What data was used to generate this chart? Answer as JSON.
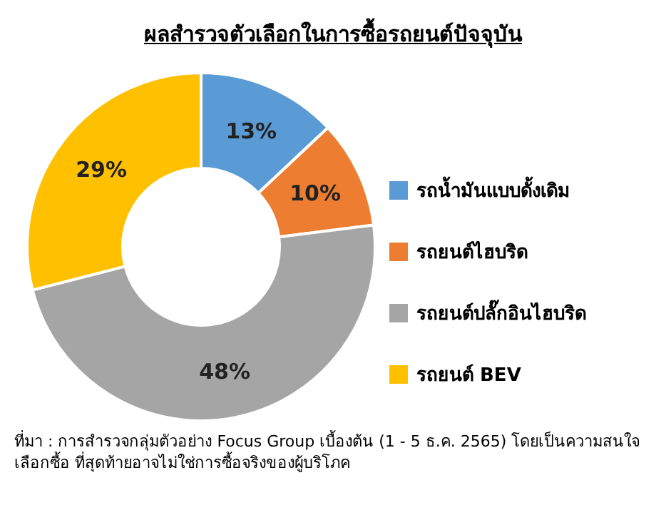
{
  "chart_data": {
    "type": "donut",
    "title": "ผลสำรวจตัวเลือกในการซื้อรถยนต์ปัจจุบัน",
    "categories": [
      "รถน้ำมันแบบดั้งเดิม",
      "รถยนต์ไฮบริด",
      "รถยนต์ปลั๊กอินไฮบริด",
      "รถยนต์ BEV"
    ],
    "values": [
      13,
      10,
      48,
      29
    ],
    "value_labels": [
      "13%",
      "10%",
      "48%",
      "29%"
    ],
    "colors": [
      "#5b9bd5",
      "#ed7d31",
      "#a5a5a5",
      "#ffc000"
    ],
    "legend": "right",
    "annotations": [
      "ที่มา : การสำรวจกลุ่มตัวอย่าง Focus Group เบื้องต้น (1 - 5 ธ.ค. 2565) โดยเป็นความสนใจเลือกซื้อ ที่สุดท้ายอาจไม่ใช่การซื้อจริงของผู้บริโภค"
    ]
  }
}
